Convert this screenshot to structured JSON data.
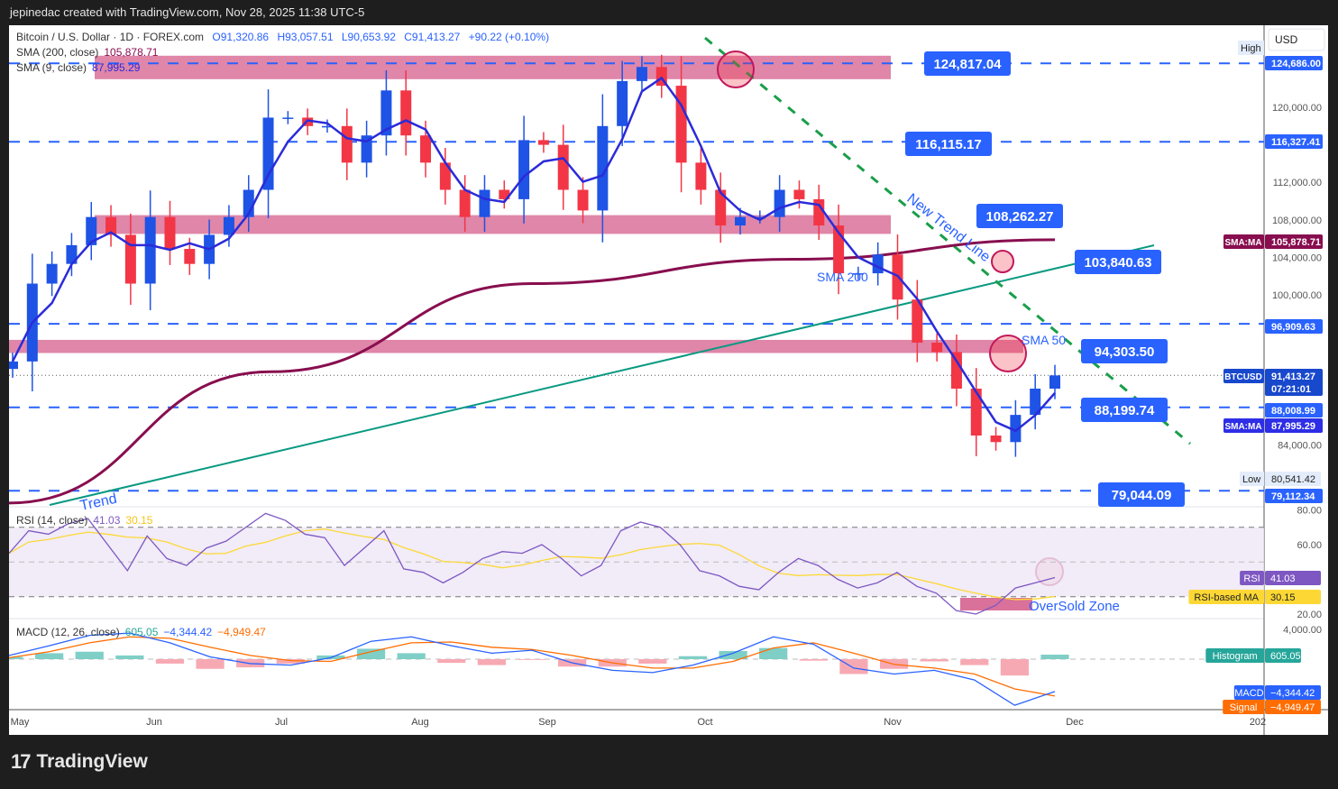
{
  "header": {
    "credit": "jepinedac created with TradingView.com, Nov 28, 2025 11:38 UTC-5"
  },
  "footer": {
    "logo_text": "TradingView"
  },
  "legend": {
    "symbol": "Bitcoin / U.S. Dollar · 1D · FOREX.com",
    "open": "O91,320.86",
    "high": "H93,057.51",
    "low": "L90,653.92",
    "close": "C91,413.27",
    "change": "+90.22 (+0.10%)",
    "sma200_label": "SMA (200, close)",
    "sma200_value": "105,878.71",
    "sma9_label": "SMA (9, close)",
    "sma9_value": "87,995.29",
    "rsi_label": "RSI (14, close)",
    "rsi_value": "41.03",
    "rsi_ma_value": "30.15",
    "macd_label": "MACD (12, 26, close)",
    "hist_value": "605.05",
    "macd_value": "−4,344.42",
    "signal_value": "−4,949.47"
  },
  "axis": {
    "currency": "USD",
    "price_ticks": [
      "120,000.00",
      "112,000.00",
      "108,000.00",
      "104,000.00",
      "100,000.00",
      "84,000.00"
    ],
    "rsi_ticks": [
      "80.00",
      "60.00",
      "20.00"
    ],
    "macd_ticks": [
      "4,000.00"
    ],
    "time_ticks": [
      "May",
      "Jun",
      "Jul",
      "Aug",
      "Sep",
      "Oct",
      "Nov",
      "Dec",
      "202"
    ],
    "high_label": "High",
    "low_label": "Low",
    "low_value": "80,541.42"
  },
  "price_tags": [
    {
      "label": "",
      "value": "124,686.00",
      "price": 124686,
      "color": "#2962ff"
    },
    {
      "label": "",
      "value": "116,327.41",
      "price": 116327,
      "color": "#2962ff"
    },
    {
      "label": "SMA:MA",
      "value": "105,878.71",
      "price": 105879,
      "color": "#880e4f"
    },
    {
      "label": "",
      "value": "96,909.63",
      "price": 96910,
      "color": "#2962ff"
    },
    {
      "label": "BTCUSD",
      "value": "91,413.27",
      "sub": "07:21:01",
      "price": 91413,
      "color": "#1848cc"
    },
    {
      "label": "",
      "value": "88,008.99",
      "price": 88009,
      "color": "#2962ff"
    },
    {
      "label": "SMA:MA",
      "value": "87,995.29",
      "price": 87700,
      "color": "#2e2ee6"
    },
    {
      "label": "",
      "value": "79,112.34",
      "price": 79112,
      "color": "#2962ff"
    }
  ],
  "indicator_tags": [
    {
      "label": "RSI",
      "value": "41.03",
      "color": "#7e57c2",
      "text": "#fff"
    },
    {
      "label": "RSI-based MA",
      "value": "30.15",
      "color": "#fdd835",
      "text": "#222"
    },
    {
      "label": "Histogram",
      "value": "605.05",
      "color": "#26a69a",
      "text": "#fff"
    },
    {
      "label": "MACD",
      "value": "−4,344.42",
      "color": "#2962ff",
      "text": "#fff"
    },
    {
      "label": "Signal",
      "value": "−4,949.47",
      "color": "#ff6d00",
      "text": "#fff"
    }
  ],
  "annotations": {
    "levels": [
      "124,817.04",
      "116,115.17",
      "108,262.27",
      "103,840.63",
      "94,303.50",
      "88,199.74",
      "79,044.09"
    ],
    "new_trend_line": "New Trend Line",
    "sma200_text": "SMA 200",
    "sma50_text": "SMA 50",
    "trend_text": "Trend",
    "oversold_text": "OverSold Zone"
  },
  "colors": {
    "up": "#1e53e5",
    "down": "#f23645",
    "sma9": "#2b2bd9",
    "sma200": "#880e4f",
    "zone": "#d9719a",
    "level": "#2962ff",
    "trend": "#089981",
    "rsi": "#7e57c2",
    "rsi_ma": "#fdd835",
    "macd": "#2962ff",
    "signal": "#ff6d00"
  },
  "chart_data": {
    "type": "candlestick",
    "symbol": "BTCUSD",
    "timeframe": "1D",
    "x_range": [
      "May 2025",
      "Nov 28, 2025"
    ],
    "ylim": [
      76000,
      128000
    ],
    "closes": [
      92900,
      101200,
      103300,
      105300,
      108300,
      106400,
      101200,
      108300,
      104900,
      103300,
      106400,
      108300,
      111200,
      118900,
      118900,
      118000,
      118000,
      114100,
      117000,
      121800,
      117000,
      114100,
      111200,
      108300,
      111200,
      110200,
      116500,
      116000,
      111200,
      109000,
      118000,
      122800,
      124300,
      122300,
      114100,
      111200,
      107400,
      108300,
      108300,
      111200,
      110200,
      107400,
      102300,
      102300,
      104300,
      99500,
      94900,
      93900,
      90000,
      85000,
      84300,
      87200,
      90000,
      91413
    ],
    "sma200": [
      77800,
      91800,
      101200,
      103800,
      105879
    ],
    "horizontal_levels": [
      124686,
      116327.41,
      96909.63,
      88008.99,
      79112.34
    ],
    "zones": [
      [
        123000,
        125500
      ],
      [
        106500,
        108500
      ],
      [
        93800,
        95200
      ]
    ],
    "rsi": [
      55,
      68,
      66,
      72,
      75,
      60,
      45,
      65,
      52,
      48,
      58,
      62,
      70,
      78,
      74,
      66,
      64,
      48,
      58,
      68,
      46,
      44,
      38,
      44,
      52,
      56,
      55,
      60,
      52,
      42,
      48,
      68,
      73,
      70,
      60,
      45,
      42,
      36,
      34,
      44,
      52,
      48,
      40,
      35,
      38,
      44,
      36,
      32,
      22,
      20,
      25,
      35,
      38,
      41.03
    ],
    "rsi_levels": [
      70,
      50,
      30
    ],
    "macd": [
      500,
      1800,
      3200,
      3500,
      2200,
      300,
      -600,
      -800,
      200,
      2400,
      3000,
      1800,
      800,
      1200,
      -500,
      -1500,
      -1800,
      -800,
      800,
      3000,
      2000,
      -1200,
      -2000,
      -1500,
      -2800,
      -6200,
      -4344.42
    ],
    "signal": [
      200,
      1000,
      2200,
      3000,
      2800,
      1600,
      500,
      -200,
      -300,
      1000,
      2200,
      2300,
      1600,
      1300,
      500,
      -500,
      -1200,
      -1200,
      -300,
      1500,
      2200,
      800,
      -700,
      -1200,
      -2000,
      -4000,
      -4949.47
    ]
  }
}
